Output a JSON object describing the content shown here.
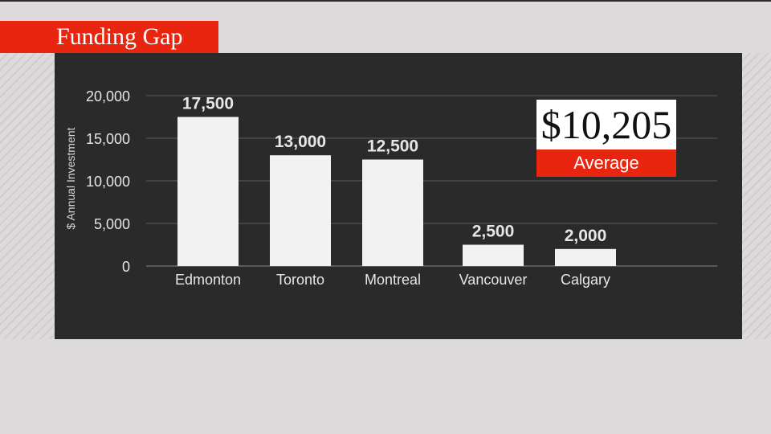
{
  "header": {
    "title": "Funding Gap"
  },
  "average": {
    "value": "$10,205",
    "label": "Average"
  },
  "chart_data": {
    "type": "bar",
    "title": "Funding Gap",
    "xlabel": "",
    "ylabel": "$ Annual Investment",
    "categories": [
      "Edmonton",
      "Toronto",
      "Montreal",
      "Vancouver",
      "Calgary"
    ],
    "values": [
      17500,
      13000,
      12500,
      2500,
      2000
    ],
    "data_labels": [
      "17,500",
      "13,000",
      "12,500",
      "2,500",
      "2,000"
    ],
    "yticks": [
      0,
      5000,
      10000,
      15000,
      20000
    ],
    "ytick_labels": [
      "0",
      "5,000",
      "10,000",
      "15,000",
      "20,000"
    ],
    "ylim": [
      0,
      20000
    ],
    "grid": true,
    "colors": {
      "bar": "#f2f2f2",
      "background": "#2a2a2a",
      "accent": "#e8250f"
    }
  }
}
